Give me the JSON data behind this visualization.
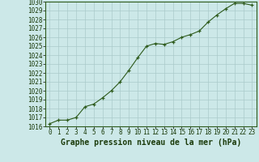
{
  "x": [
    0,
    1,
    2,
    3,
    4,
    5,
    6,
    7,
    8,
    9,
    10,
    11,
    12,
    13,
    14,
    15,
    16,
    17,
    18,
    19,
    20,
    21,
    22,
    23
  ],
  "y": [
    1016.3,
    1016.7,
    1016.7,
    1017.0,
    1018.2,
    1018.5,
    1019.2,
    1020.0,
    1021.0,
    1022.3,
    1023.7,
    1025.0,
    1025.3,
    1025.2,
    1025.5,
    1026.0,
    1026.3,
    1026.7,
    1027.7,
    1028.5,
    1029.2,
    1029.8,
    1029.8,
    1029.6
  ],
  "line_color": "#2d5a1b",
  "marker_color": "#2d5a1b",
  "bg_color": "#cce8e8",
  "grid_color": "#aacaca",
  "title": "Graphe pression niveau de la mer (hPa)",
  "ylim_min": 1016,
  "ylim_max": 1030,
  "ytick_step": 1,
  "xtick_labels": [
    "0",
    "1",
    "2",
    "3",
    "4",
    "5",
    "6",
    "7",
    "8",
    "9",
    "10",
    "11",
    "12",
    "13",
    "14",
    "15",
    "16",
    "17",
    "18",
    "19",
    "20",
    "21",
    "22",
    "23"
  ],
  "title_fontsize": 7.0,
  "tick_fontsize": 5.5,
  "title_color": "#1a3a0a",
  "tick_color": "#1a3a0a",
  "spine_color": "#2d5a1b"
}
